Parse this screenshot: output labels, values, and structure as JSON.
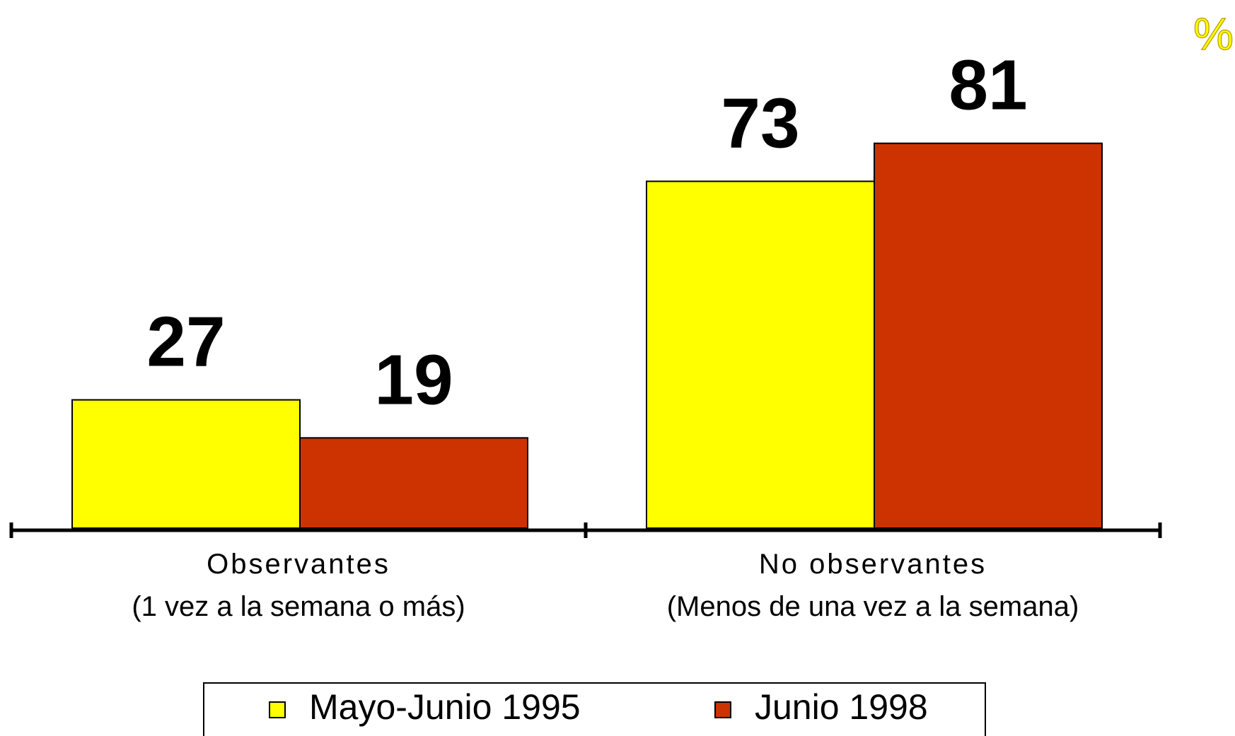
{
  "chart_data": {
    "type": "bar",
    "unit": "%",
    "categories": [
      [
        "Observantes",
        "(1 vez a la semana o más)"
      ],
      [
        "No observantes",
        "(Menos de una vez a la semana)"
      ]
    ],
    "series": [
      {
        "name": "Mayo-Junio 1995",
        "color": "#ffff00",
        "values": [
          27,
          73
        ]
      },
      {
        "name": "Junio 1998",
        "color": "#cc3300",
        "values": [
          19,
          81
        ]
      }
    ],
    "ylim": [
      0,
      100
    ],
    "legend": "bottom"
  }
}
